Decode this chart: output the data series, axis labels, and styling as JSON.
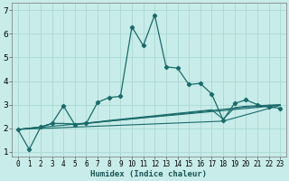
{
  "xlabel": "Humidex (Indice chaleur)",
  "background_color": "#c8ece9",
  "grid_color": "#aad8d4",
  "line_color": "#1a6b6b",
  "xlim": [
    -0.5,
    23.5
  ],
  "ylim": [
    0.8,
    7.3
  ],
  "yticks": [
    1,
    2,
    3,
    4,
    5,
    6,
    7
  ],
  "xticks": [
    0,
    1,
    2,
    3,
    4,
    5,
    6,
    7,
    8,
    9,
    10,
    11,
    12,
    13,
    14,
    15,
    16,
    17,
    18,
    19,
    20,
    21,
    22,
    23
  ],
  "main_x": [
    0,
    1,
    2,
    3,
    4,
    5,
    6,
    7,
    8,
    9,
    10,
    11,
    12,
    13,
    14,
    15,
    16,
    17,
    18,
    19,
    20,
    21,
    22,
    23
  ],
  "main_y": [
    1.95,
    1.1,
    2.05,
    2.2,
    2.95,
    2.15,
    2.2,
    3.1,
    3.3,
    3.35,
    6.3,
    5.5,
    6.8,
    4.6,
    4.55,
    3.85,
    3.9,
    3.45,
    2.35,
    3.05,
    3.2,
    3.0,
    2.9,
    2.85
  ],
  "line2_x": [
    0,
    2,
    3,
    4,
    5,
    6,
    7,
    8,
    9,
    10,
    11,
    12,
    13,
    14,
    15,
    16,
    17,
    18,
    19,
    20,
    21,
    22,
    23
  ],
  "line2_y": [
    1.95,
    2.05,
    2.2,
    2.2,
    2.15,
    2.2,
    2.25,
    2.3,
    2.35,
    2.4,
    2.45,
    2.5,
    2.55,
    2.6,
    2.65,
    2.7,
    2.75,
    2.8,
    2.85,
    2.9,
    2.92,
    2.95,
    2.97
  ],
  "line3_x": [
    0,
    2,
    3,
    4,
    5,
    6,
    7,
    8,
    9,
    10,
    11,
    12,
    13,
    14,
    15,
    16,
    17,
    18,
    19,
    20,
    21,
    22,
    23
  ],
  "line3_y": [
    1.95,
    2.05,
    2.2,
    2.2,
    2.18,
    2.22,
    2.27,
    2.33,
    2.38,
    2.43,
    2.48,
    2.53,
    2.58,
    2.63,
    2.68,
    2.73,
    2.78,
    2.38,
    2.87,
    2.93,
    2.95,
    2.98,
    3.0
  ],
  "line4_x": [
    0,
    18,
    23
  ],
  "line4_y": [
    1.95,
    2.3,
    2.97
  ],
  "line5_x": [
    0,
    23
  ],
  "line5_y": [
    1.95,
    2.97
  ]
}
